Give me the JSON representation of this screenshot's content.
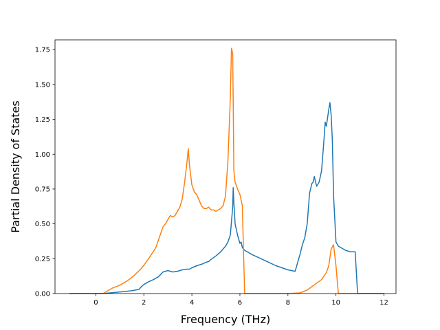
{
  "chart_data": {
    "type": "line",
    "title": "",
    "xlabel": "Frequency (THz)",
    "ylabel": "Partial Density of States",
    "xlim": [
      -1.7,
      12.5
    ],
    "ylim": [
      0.0,
      1.82
    ],
    "xticks": [
      0,
      2,
      4,
      6,
      8,
      10,
      12
    ],
    "xtick_labels": [
      "0",
      "2",
      "4",
      "6",
      "8",
      "10",
      "12"
    ],
    "yticks": [
      0.0,
      0.25,
      0.5,
      0.75,
      1.0,
      1.25,
      1.5,
      1.75
    ],
    "ytick_labels": [
      "0.00",
      "0.25",
      "0.50",
      "0.75",
      "1.00",
      "1.25",
      "1.50",
      "1.75"
    ],
    "grid": false,
    "legend": false,
    "series": [
      {
        "color": "#1f77b4",
        "x": [
          -1.1,
          0.3,
          0.6,
          0.9,
          1.2,
          1.5,
          1.8,
          1.9,
          2.0,
          2.1,
          2.2,
          2.4,
          2.6,
          2.8,
          2.9,
          3.0,
          3.1,
          3.2,
          3.4,
          3.6,
          3.8,
          3.9,
          4.0,
          4.2,
          4.4,
          4.6,
          4.7,
          4.8,
          5.0,
          5.2,
          5.4,
          5.5,
          5.6,
          5.7,
          5.72,
          5.75,
          5.8,
          5.9,
          6.0,
          6.05,
          6.1,
          6.2,
          6.5,
          7.0,
          7.5,
          8.0,
          8.3,
          8.4,
          8.5,
          8.6,
          8.7,
          8.8,
          8.9,
          9.0,
          9.05,
          9.1,
          9.15,
          9.2,
          9.3,
          9.4,
          9.5,
          9.55,
          9.6,
          9.7,
          9.75,
          9.8,
          9.85,
          9.9,
          10.0,
          10.1,
          10.2,
          10.4,
          10.6,
          10.8,
          10.85,
          10.9,
          12.0
        ],
        "values": [
          0.0,
          0.0,
          0.005,
          0.01,
          0.015,
          0.02,
          0.03,
          0.05,
          0.065,
          0.075,
          0.085,
          0.1,
          0.12,
          0.155,
          0.16,
          0.165,
          0.16,
          0.155,
          0.16,
          0.17,
          0.175,
          0.175,
          0.185,
          0.2,
          0.21,
          0.225,
          0.23,
          0.245,
          0.27,
          0.3,
          0.34,
          0.37,
          0.42,
          0.62,
          0.76,
          0.65,
          0.5,
          0.42,
          0.36,
          0.37,
          0.33,
          0.31,
          0.28,
          0.24,
          0.2,
          0.17,
          0.16,
          0.22,
          0.28,
          0.35,
          0.4,
          0.5,
          0.72,
          0.79,
          0.8,
          0.84,
          0.8,
          0.77,
          0.8,
          0.88,
          1.1,
          1.23,
          1.2,
          1.32,
          1.37,
          1.28,
          1.1,
          0.7,
          0.37,
          0.34,
          0.33,
          0.31,
          0.3,
          0.3,
          0.15,
          0.0,
          0.0
        ]
      },
      {
        "color": "#ff7f0e",
        "x": [
          -1.1,
          0.3,
          0.5,
          0.7,
          1.0,
          1.3,
          1.6,
          1.9,
          2.2,
          2.5,
          2.7,
          2.8,
          2.9,
          3.0,
          3.1,
          3.2,
          3.3,
          3.5,
          3.6,
          3.7,
          3.8,
          3.85,
          3.9,
          4.0,
          4.1,
          4.2,
          4.3,
          4.4,
          4.5,
          4.6,
          4.7,
          4.8,
          4.9,
          5.0,
          5.1,
          5.2,
          5.3,
          5.4,
          5.5,
          5.6,
          5.65,
          5.7,
          5.75,
          5.8,
          5.9,
          6.0,
          6.1,
          6.15,
          6.2,
          7.0,
          8.0,
          8.5,
          8.8,
          9.0,
          9.2,
          9.4,
          9.6,
          9.7,
          9.8,
          9.9,
          10.0,
          10.05,
          10.1,
          12.0
        ],
        "values": [
          0.0,
          0.0,
          0.02,
          0.04,
          0.06,
          0.09,
          0.13,
          0.18,
          0.25,
          0.33,
          0.43,
          0.48,
          0.5,
          0.53,
          0.56,
          0.55,
          0.56,
          0.62,
          0.68,
          0.8,
          0.95,
          1.04,
          0.92,
          0.78,
          0.73,
          0.71,
          0.67,
          0.63,
          0.61,
          0.61,
          0.62,
          0.6,
          0.6,
          0.59,
          0.6,
          0.61,
          0.63,
          0.7,
          0.95,
          1.4,
          1.76,
          1.72,
          0.88,
          0.8,
          0.75,
          0.71,
          0.63,
          0.3,
          0.0,
          0.0,
          0.0,
          0.005,
          0.025,
          0.05,
          0.075,
          0.1,
          0.15,
          0.2,
          0.32,
          0.35,
          0.2,
          0.1,
          0.0,
          0.0
        ]
      }
    ]
  }
}
